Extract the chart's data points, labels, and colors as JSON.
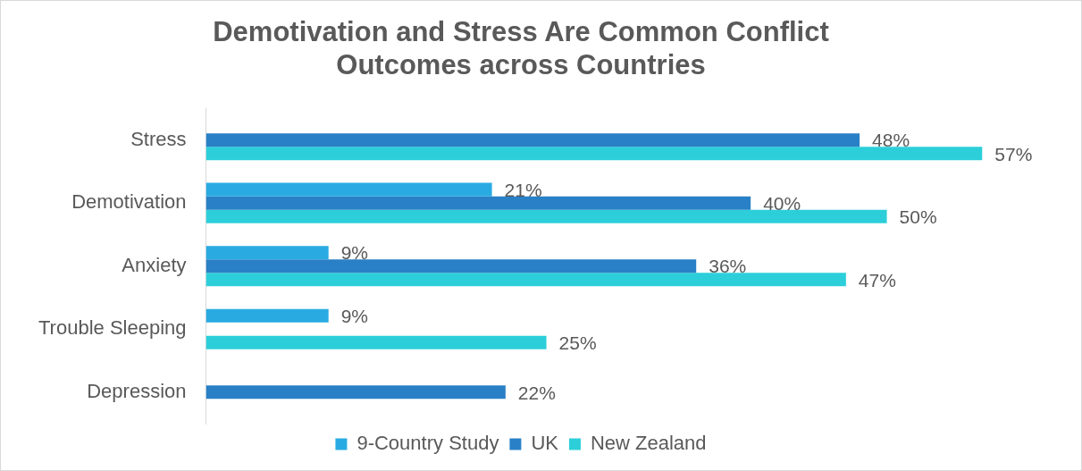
{
  "chart_data": {
    "type": "bar",
    "orientation": "horizontal",
    "title": "Demotivation and Stress Are Common Conflict Outcomes across Countries",
    "categories": [
      "Stress",
      "Demotivation",
      "Anxiety",
      "Trouble Sleeping",
      "Depression"
    ],
    "series": [
      {
        "name": "9-Country Study",
        "color": "#29abe2",
        "values": [
          null,
          21,
          9,
          9,
          null
        ],
        "value_labels": [
          null,
          "21%",
          "9%",
          "9%",
          null
        ]
      },
      {
        "name": "UK",
        "color": "#2a80c6",
        "values": [
          48,
          40,
          36,
          null,
          22
        ],
        "value_labels": [
          "48%",
          "40%",
          "36%",
          null,
          "22%"
        ]
      },
      {
        "name": "New Zealand",
        "color": "#2ccfd9",
        "values": [
          57,
          50,
          47,
          25,
          null
        ],
        "value_labels": [
          "57%",
          "50%",
          "47%",
          "25%",
          null
        ]
      }
    ],
    "legend": "bottom"
  }
}
